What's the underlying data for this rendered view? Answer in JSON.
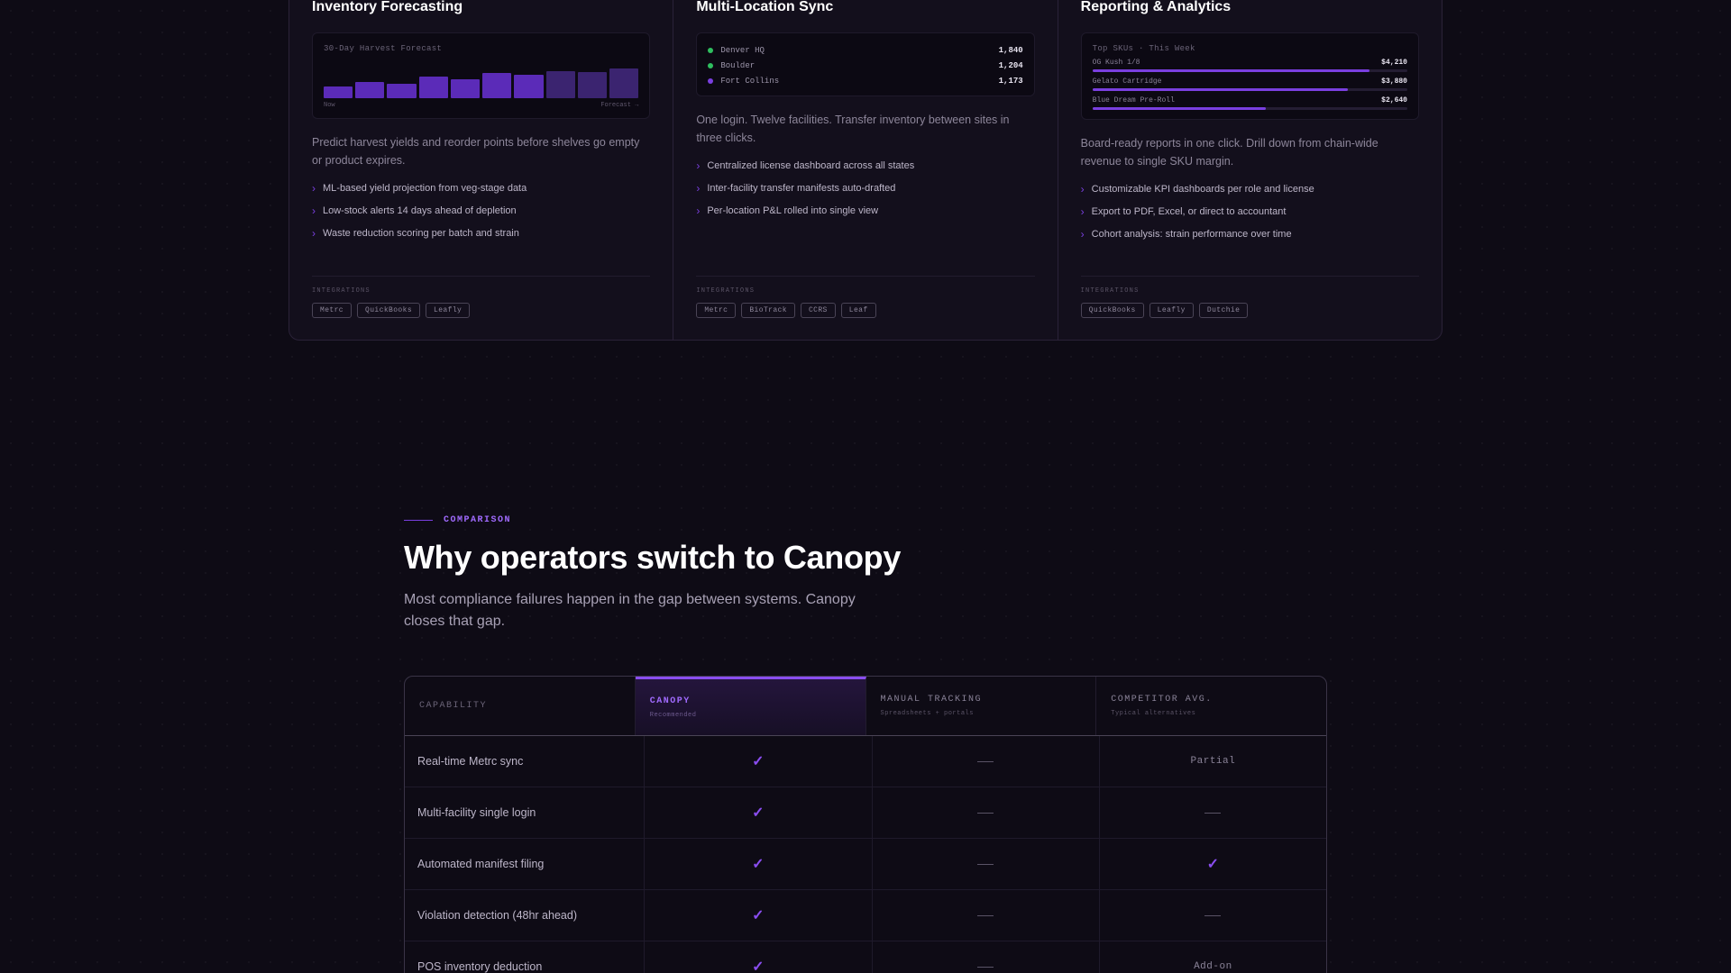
{
  "features": [
    {
      "title": "Inventory Forecasting",
      "preview": {
        "type": "bars",
        "title": "30-Day Harvest Forecast",
        "bars": [
          0.33,
          0.46,
          0.39,
          0.6,
          0.52,
          0.69,
          0.64,
          0.76,
          0.72,
          0.82
        ],
        "forecast_from_index": 7,
        "axis_left": "Now",
        "axis_right": "Forecast →"
      },
      "description": "Predict harvest yields and reorder points before shelves go empty or product expires.",
      "bullets": [
        "ML-based yield projection from veg-stage data",
        "Low-stock alerts 14 days ahead of depletion",
        "Waste reduction scoring per batch and strain"
      ],
      "integrations_label": "INTEGRATIONS",
      "integrations": [
        "Metrc",
        "QuickBooks",
        "Leafly"
      ]
    },
    {
      "title": "Multi-Location Sync",
      "preview": {
        "type": "locations",
        "rows": [
          {
            "name": "Denver HQ",
            "value": "1,840",
            "color": "#2fbf5f"
          },
          {
            "name": "Boulder",
            "value": "1,204",
            "color": "#2fbf5f"
          },
          {
            "name": "Fort Collins",
            "value": "1,173",
            "color": "#7a3fe0"
          }
        ]
      },
      "description": "One login. Twelve facilities. Transfer inventory between sites in three clicks.",
      "bullets": [
        "Centralized license dashboard across all states",
        "Inter-facility transfer manifests auto-drafted",
        "Per-location P&L rolled into single view"
      ],
      "integrations_label": "INTEGRATIONS",
      "integrations": [
        "Metrc",
        "BioTrack",
        "CCRS",
        "Leaf"
      ]
    },
    {
      "title": "Reporting & Analytics",
      "preview": {
        "type": "skus",
        "title": "Top SKUs · This Week",
        "rows": [
          {
            "name": "OG Kush 1/8",
            "value": "$4,210",
            "fill": 0.88
          },
          {
            "name": "Gelato Cartridge",
            "value": "$3,880",
            "fill": 0.81
          },
          {
            "name": "Blue Dream Pre-Roll",
            "value": "$2,640",
            "fill": 0.55
          }
        ]
      },
      "description": "Board-ready reports in one click. Drill down from chain-wide revenue to single SKU margin.",
      "bullets": [
        "Customizable KPI dashboards per role and license",
        "Export to PDF, Excel, or direct to accountant",
        "Cohort analysis: strain performance over time"
      ],
      "integrations_label": "INTEGRATIONS",
      "integrations": [
        "QuickBooks",
        "Leafly",
        "Dutchie"
      ]
    }
  ],
  "comparison": {
    "eyebrow": "COMPARISON",
    "title": "Why operators switch to Canopy",
    "subtitle": "Most compliance failures happen in the gap between systems. Canopy closes that gap.",
    "columns": [
      {
        "heading": "CAPABILITY",
        "sub": ""
      },
      {
        "heading": "CANOPY",
        "sub": "Recommended"
      },
      {
        "heading": "MANUAL TRACKING",
        "sub": "Spreadsheets + portals"
      },
      {
        "heading": "COMPETITOR AVG.",
        "sub": "Typical alternatives"
      }
    ],
    "rows": [
      {
        "capability": "Real-time Metrc sync",
        "cells": [
          "check",
          "dash",
          "Partial"
        ]
      },
      {
        "capability": "Multi-facility single login",
        "cells": [
          "check",
          "dash",
          "dash"
        ]
      },
      {
        "capability": "Automated manifest filing",
        "cells": [
          "check",
          "dash",
          "check"
        ]
      },
      {
        "capability": "Violation detection (48hr ahead)",
        "cells": [
          "check",
          "dash",
          "dash"
        ]
      },
      {
        "capability": "POS inventory deduction",
        "cells": [
          "check",
          "dash",
          "Add-on"
        ]
      }
    ],
    "check_glyph": "✓",
    "accent_color": "#8a4df0"
  }
}
